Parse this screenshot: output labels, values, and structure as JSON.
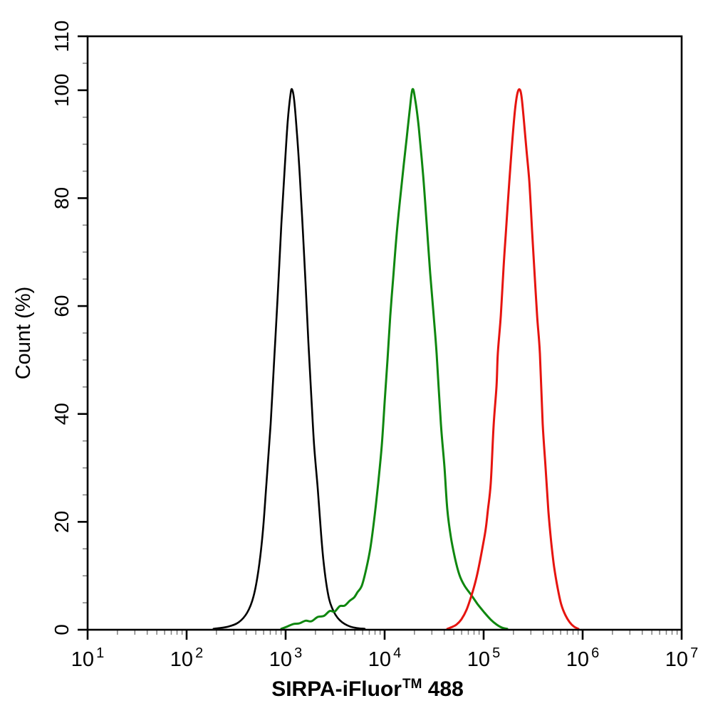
{
  "axes": {
    "x": {
      "label_prefix": "SIRPA-iFluor",
      "label_tm": "TM",
      "label_suffix": " 488",
      "label_full": "SIRPA-iFluor™ 488",
      "scale": "log10",
      "tick_mantissa": "10",
      "major_tick_exponents": [
        1,
        2,
        3,
        4,
        5,
        6,
        7
      ],
      "minor_tick_mantissas": [
        2,
        3,
        4,
        5,
        6,
        7,
        8,
        9
      ]
    },
    "y": {
      "label": "Count  (%)",
      "min": 0,
      "max": 110,
      "major_ticks": [
        0,
        20,
        40,
        60,
        80,
        100,
        110
      ],
      "major_tick_labels": [
        "0",
        "20",
        "40",
        "60",
        "80",
        "100",
        "110"
      ],
      "minor_tick_step": 5
    }
  },
  "colors": {
    "background": "#ffffff",
    "axis": "#000000",
    "minor_tick": "#808080",
    "curve_black": "#000000",
    "curve_green": "#0f870f",
    "curve_red": "#e6140f"
  },
  "chart_data": {
    "type": "line",
    "subtype": "flow-cytometry-overlay-histogram",
    "title": "",
    "xlabel": "SIRPA-iFluor™ 488",
    "ylabel": "Count (%)",
    "xscale": "log",
    "xlim": [
      10,
      10000000
    ],
    "ylim": [
      0,
      110
    ],
    "grid": false,
    "legend": "none",
    "series": [
      {
        "name": "black-curve",
        "color": "#000000",
        "stroke_width": 2.6,
        "peak": {
          "x": 1160,
          "y": 100
        },
        "points": [
          [
            187,
            0
          ],
          [
            261,
            0.4
          ],
          [
            335,
            1.2
          ],
          [
            409,
            3
          ],
          [
            474,
            6
          ],
          [
            533,
            11
          ],
          [
            589,
            18
          ],
          [
            640,
            27
          ],
          [
            706,
            38
          ],
          [
            767,
            50
          ],
          [
            834,
            62
          ],
          [
            906,
            75
          ],
          [
            984,
            86
          ],
          [
            1050,
            94
          ],
          [
            1120,
            99
          ],
          [
            1160,
            100
          ],
          [
            1220,
            98
          ],
          [
            1300,
            92
          ],
          [
            1390,
            84
          ],
          [
            1490,
            74
          ],
          [
            1590,
            64
          ],
          [
            1700,
            53
          ],
          [
            1820,
            43
          ],
          [
            1940,
            34
          ],
          [
            2110,
            26
          ],
          [
            2250,
            19
          ],
          [
            2400,
            13
          ],
          [
            2570,
            8.5
          ],
          [
            2750,
            5.5
          ],
          [
            2940,
            3.9
          ],
          [
            3190,
            2.6
          ],
          [
            3520,
            1.6
          ],
          [
            3950,
            0.9
          ],
          [
            4520,
            0.4
          ],
          [
            5240,
            0.15
          ],
          [
            6290,
            0
          ]
        ]
      },
      {
        "name": "green-curve",
        "color": "#0f870f",
        "stroke_width": 3,
        "peak": {
          "x": 19100,
          "y": 100
        },
        "points": [
          [
            906,
            0
          ],
          [
            1030,
            0.4
          ],
          [
            1200,
            0.9
          ],
          [
            1370,
            1.0
          ],
          [
            1590,
            1.5
          ],
          [
            1820,
            1.4
          ],
          [
            2110,
            2.2
          ],
          [
            2440,
            2.4
          ],
          [
            2790,
            3.3
          ],
          [
            3130,
            3.2
          ],
          [
            3520,
            4.2
          ],
          [
            3950,
            4.3
          ],
          [
            4440,
            5.2
          ],
          [
            4910,
            5.8
          ],
          [
            5330,
            6.8
          ],
          [
            5890,
            8
          ],
          [
            6500,
            11
          ],
          [
            7180,
            15
          ],
          [
            7930,
            21
          ],
          [
            8610,
            27
          ],
          [
            9360,
            34
          ],
          [
            10000,
            42
          ],
          [
            10700,
            50
          ],
          [
            11400,
            58
          ],
          [
            12200,
            65
          ],
          [
            13200,
            73
          ],
          [
            14400,
            80
          ],
          [
            15600,
            86
          ],
          [
            16700,
            91
          ],
          [
            17900,
            96
          ],
          [
            19100,
            100
          ],
          [
            20400,
            98
          ],
          [
            22100,
            93
          ],
          [
            24500,
            84
          ],
          [
            26600,
            75
          ],
          [
            28800,
            66
          ],
          [
            31300,
            58
          ],
          [
            33500,
            51
          ],
          [
            37000,
            38
          ],
          [
            40200,
            30
          ],
          [
            43000,
            22
          ],
          [
            46700,
            17
          ],
          [
            51500,
            13
          ],
          [
            56900,
            10
          ],
          [
            64000,
            8
          ],
          [
            75500,
            6.2
          ],
          [
            87500,
            4.5
          ],
          [
            102000,
            3
          ],
          [
            118000,
            1.7
          ],
          [
            135000,
            0.8
          ],
          [
            154000,
            0.2
          ],
          [
            173000,
            0
          ]
        ]
      },
      {
        "name": "red-curve",
        "color": "#e6140f",
        "stroke_width": 3,
        "peak": {
          "x": 229000,
          "y": 100
        },
        "points": [
          [
            43000,
            0
          ],
          [
            47400,
            0.3
          ],
          [
            53300,
            0.8
          ],
          [
            59800,
            1.8
          ],
          [
            67100,
            3.5
          ],
          [
            75500,
            6.2
          ],
          [
            83400,
            9
          ],
          [
            90600,
            12
          ],
          [
            98400,
            15.5
          ],
          [
            105000,
            18.5
          ],
          [
            110000,
            21.8
          ],
          [
            118000,
            27
          ],
          [
            126000,
            37.6
          ],
          [
            135000,
            45
          ],
          [
            139000,
            51
          ],
          [
            149000,
            58
          ],
          [
            159000,
            67
          ],
          [
            167000,
            73
          ],
          [
            182000,
            83
          ],
          [
            194000,
            90
          ],
          [
            207000,
            96
          ],
          [
            218000,
            99
          ],
          [
            229000,
            100
          ],
          [
            240000,
            99
          ],
          [
            253000,
            95
          ],
          [
            270000,
            89
          ],
          [
            289000,
            83
          ],
          [
            308000,
            74
          ],
          [
            324000,
            67
          ],
          [
            347000,
            58
          ],
          [
            370000,
            51
          ],
          [
            395000,
            38
          ],
          [
            422000,
            30
          ],
          [
            451000,
            21.8
          ],
          [
            482000,
            16
          ],
          [
            515000,
            11.5
          ],
          [
            560000,
            7.5
          ],
          [
            608000,
            4.5
          ],
          [
            671000,
            2.5
          ],
          [
            741000,
            1.2
          ],
          [
            820000,
            0.4
          ],
          [
            906000,
            0
          ]
        ]
      }
    ]
  }
}
